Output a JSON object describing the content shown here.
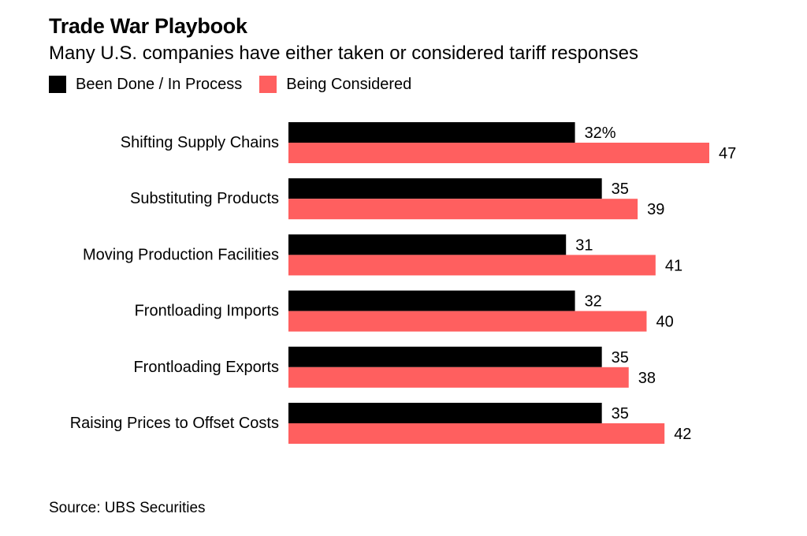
{
  "title": "Trade War Playbook",
  "subtitle": "Many U.S. companies have either taken or considered tariff responses",
  "source": "Source: UBS Securities",
  "colors": {
    "done": "#000000",
    "considered": "#ff5f5f",
    "text": "#000000",
    "background": "#ffffff"
  },
  "chart_data": {
    "type": "bar",
    "orientation": "horizontal",
    "categories": [
      "Shifting Supply Chains",
      "Substituting Products",
      "Moving Production Facilities",
      "Frontloading Imports",
      "Frontloading Exports",
      "Raising Prices to Offset Costs"
    ],
    "series": [
      {
        "name": "Been Done / In Process",
        "color": "#000000",
        "values": [
          32,
          35,
          31,
          32,
          35,
          35
        ],
        "labels": [
          "32%",
          "35",
          "31",
          "32",
          "35",
          "35"
        ]
      },
      {
        "name": "Being Considered",
        "color": "#ff5f5f",
        "values": [
          47,
          39,
          41,
          40,
          38,
          42
        ],
        "labels": [
          "47",
          "39",
          "41",
          "40",
          "38",
          "42"
        ]
      }
    ],
    "xlim": [
      0,
      47
    ],
    "grid": false,
    "legend": "top-left"
  }
}
